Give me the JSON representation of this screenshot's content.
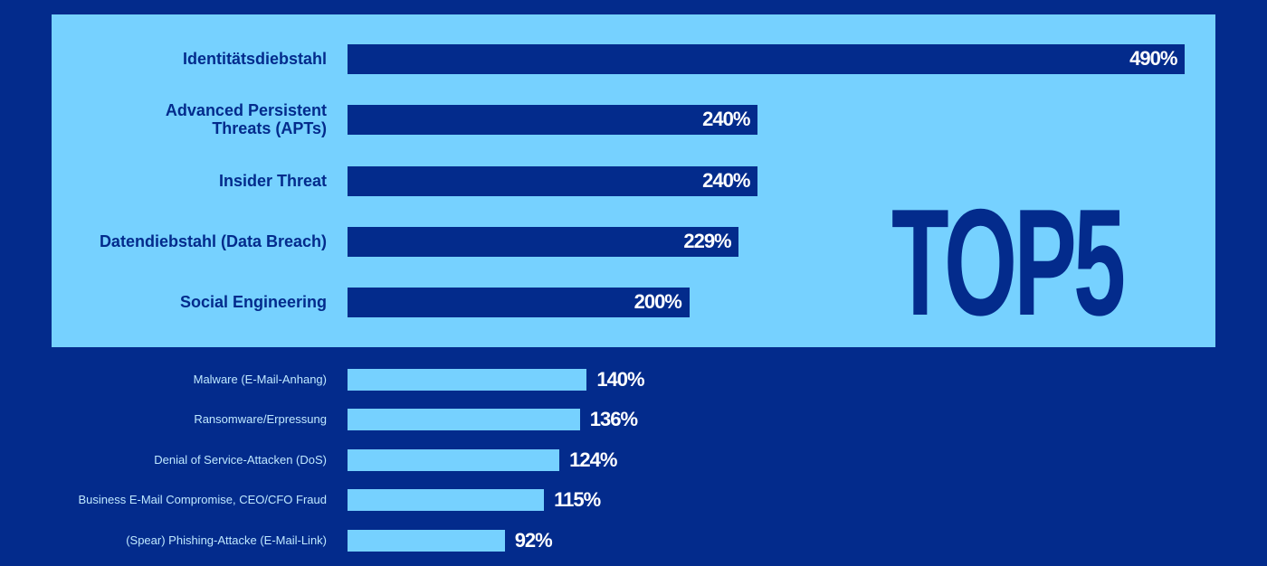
{
  "badge": {
    "text": "TOP5"
  },
  "colors": {
    "background": "#032b8c",
    "panel": "#76d1ff",
    "bar_top": "#032b8c",
    "bar_rest": "#76d1ff",
    "value_text": "#ffffff"
  },
  "chart_data": {
    "type": "bar",
    "orientation": "horizontal",
    "title": "",
    "xlabel": "",
    "ylabel": "",
    "xlim": [
      0,
      490
    ],
    "unit": "%",
    "grid": false,
    "legend": null,
    "categories": [
      "Identitätsdiebstahl",
      "Advanced Persistent\nThreats (APTs)",
      "Insider Threat",
      "Datendiebstahl (Data Breach)",
      "Social Engineering",
      "Malware (E-Mail-Anhang)",
      "Ransomware/Erpressung",
      "Denial of Service-Attacken (DoS)",
      "Business E-Mail Compromise, CEO/CFO Fraud",
      "(Spear) Phishing-Attacke (E-Mail-Link)"
    ],
    "values": [
      490,
      240,
      240,
      229,
      200,
      140,
      136,
      124,
      115,
      92
    ],
    "value_labels": [
      "490%",
      "240%",
      "240%",
      "229%",
      "200%",
      "140%",
      "136%",
      "124%",
      "115%",
      "92%"
    ],
    "top_group_size": 5
  }
}
